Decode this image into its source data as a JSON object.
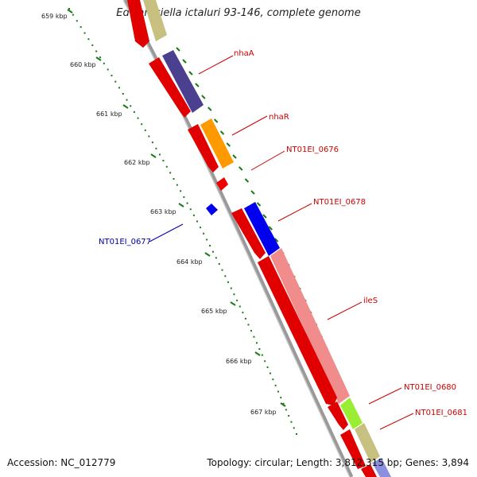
{
  "title": "Edwardsiella ictaluri 93-146, complete genome",
  "accession": "Accession: NC_012779",
  "topology": "Topology: circular; Length: 3,812,315 bp; Genes: 3,894",
  "colors": {
    "backbone": "#8a8a8a",
    "tick": "#1a7a1a",
    "forward_label": "#cc0000",
    "reverse_label": "#0000aa"
  },
  "kbp_labels": [
    "659 kbp",
    "660 kbp",
    "661 kbp",
    "662 kbp",
    "663 kbp",
    "664 kbp",
    "665 kbp",
    "666 kbp",
    "667 kbp"
  ],
  "gene_labels": [
    {
      "name": "nhaA",
      "color": "#cc0000"
    },
    {
      "name": "nhaR",
      "color": "#cc0000"
    },
    {
      "name": "NT01EI_0676",
      "color": "#cc0000"
    },
    {
      "name": "NT01EI_0678",
      "color": "#cc0000"
    },
    {
      "name": "NT01EI_0677",
      "color": "#0000aa"
    },
    {
      "name": "ileS",
      "color": "#cc0000"
    },
    {
      "name": "NT01EI_0680",
      "color": "#cc0000"
    },
    {
      "name": "NT01EI_0681",
      "color": "#cc0000"
    }
  ],
  "features": [
    {
      "name": "nhaA",
      "strand": "+",
      "color": "#4b3f8f"
    },
    {
      "name": "nhaR",
      "strand": "+",
      "color": "#ff9900"
    },
    {
      "name": "NT01EI_0678",
      "strand": "+",
      "color": "#0000ee"
    },
    {
      "name": "ileS",
      "strand": "+",
      "color": "#f08c8c"
    },
    {
      "name": "NT01EI_0680",
      "strand": "+",
      "color": "#99ee33"
    },
    {
      "name": "NT01EI_0681",
      "strand": "+",
      "color": "#c8c080"
    },
    {
      "name": "NT01EI_0677",
      "strand": "-",
      "color": "#0000ee"
    },
    {
      "name": "cds",
      "strand": "+",
      "color": "#ee0000"
    }
  ]
}
